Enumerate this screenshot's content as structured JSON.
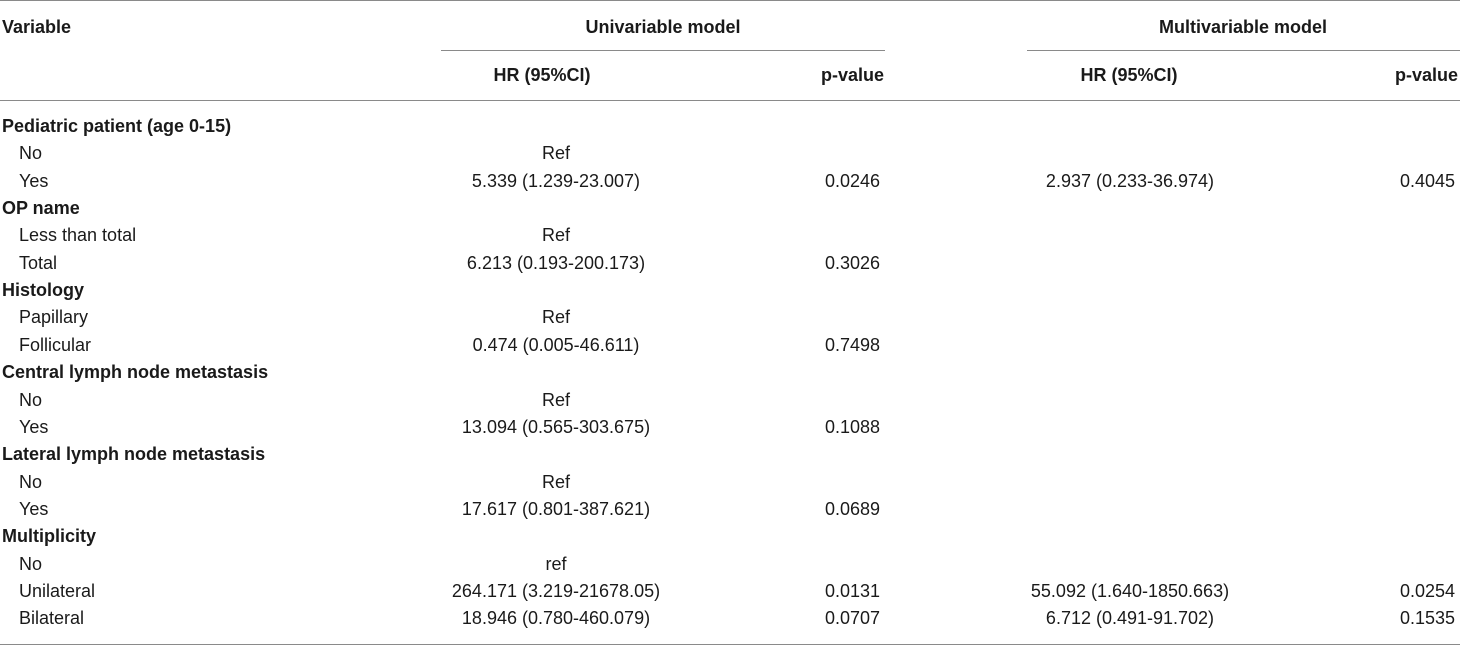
{
  "header": {
    "variable": "Variable",
    "univariable": "Univariable model",
    "multivariable": "Multivariable model",
    "hr": "HR (95%CI)",
    "pvalue": "p-value"
  },
  "groups": [
    {
      "title": "Pediatric patient (age 0-15)",
      "rows": [
        {
          "label": "No",
          "uni_hr": "Ref",
          "uni_p": "",
          "multi_hr": "",
          "multi_p": ""
        },
        {
          "label": "Yes",
          "uni_hr": "5.339 (1.239-23.007)",
          "uni_p": "0.0246",
          "multi_hr": "2.937 (0.233-36.974)",
          "multi_p": "0.4045"
        }
      ]
    },
    {
      "title": "OP name",
      "rows": [
        {
          "label": "Less than total",
          "uni_hr": "Ref",
          "uni_p": "",
          "multi_hr": "",
          "multi_p": ""
        },
        {
          "label": "Total",
          "uni_hr": "6.213 (0.193-200.173)",
          "uni_p": "0.3026",
          "multi_hr": "",
          "multi_p": ""
        }
      ]
    },
    {
      "title": "Histology",
      "rows": [
        {
          "label": "Papillary",
          "uni_hr": "Ref",
          "uni_p": "",
          "multi_hr": "",
          "multi_p": ""
        },
        {
          "label": "Follicular",
          "uni_hr": "0.474 (0.005-46.611)",
          "uni_p": "0.7498",
          "multi_hr": "",
          "multi_p": ""
        }
      ]
    },
    {
      "title": "Central lymph node metastasis",
      "rows": [
        {
          "label": "No",
          "uni_hr": "Ref",
          "uni_p": "",
          "multi_hr": "",
          "multi_p": ""
        },
        {
          "label": "Yes",
          "uni_hr": "13.094 (0.565-303.675)",
          "uni_p": "0.1088",
          "multi_hr": "",
          "multi_p": ""
        }
      ]
    },
    {
      "title": "Lateral lymph node metastasis",
      "rows": [
        {
          "label": "No",
          "uni_hr": "Ref",
          "uni_p": "",
          "multi_hr": "",
          "multi_p": ""
        },
        {
          "label": "Yes",
          "uni_hr": "17.617 (0.801-387.621)",
          "uni_p": "0.0689",
          "multi_hr": "",
          "multi_p": ""
        }
      ]
    },
    {
      "title": "Multiplicity",
      "rows": [
        {
          "label": "No",
          "uni_hr": "ref",
          "uni_p": "",
          "multi_hr": "",
          "multi_p": ""
        },
        {
          "label": "Unilateral",
          "uni_hr": "264.171 (3.219-21678.05)",
          "uni_p": "0.0131",
          "multi_hr": "55.092 (1.640-1850.663)",
          "multi_p": "0.0254"
        },
        {
          "label": "Bilateral",
          "uni_hr": "18.946 (0.780-460.079)",
          "uni_p": "0.0707",
          "multi_hr": "6.712 (0.491-91.702)",
          "multi_p": "0.1535"
        }
      ]
    }
  ]
}
